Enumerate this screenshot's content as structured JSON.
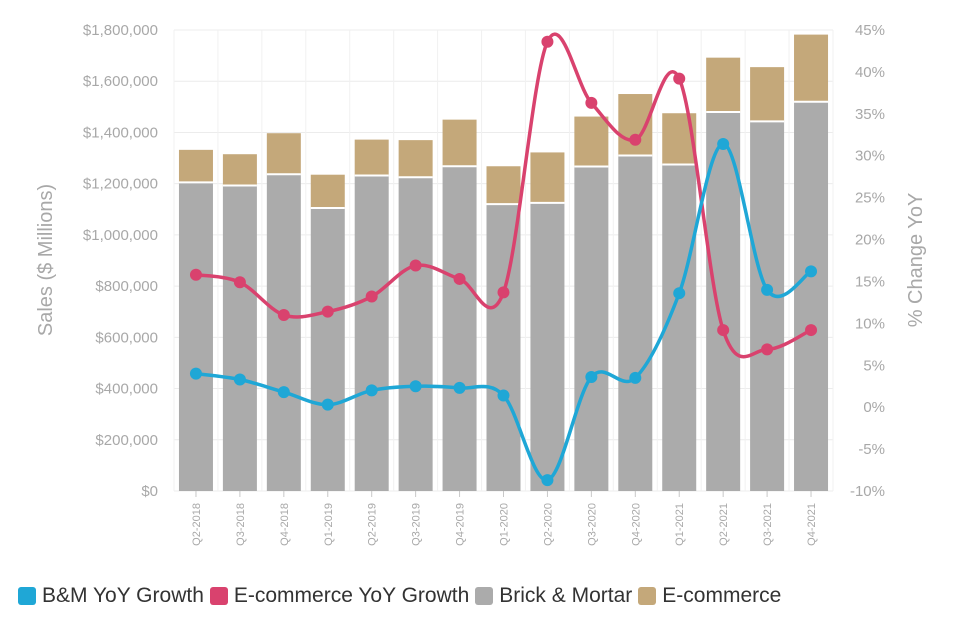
{
  "chart_data": {
    "type": "bar+line",
    "categories": [
      "Q2-2018",
      "Q3-2018",
      "Q4-2018",
      "Q1-2019",
      "Q2-2019",
      "Q3-2019",
      "Q4-2019",
      "Q1-2020",
      "Q2-2020",
      "Q3-2020",
      "Q4-2020",
      "Q1-2021",
      "Q2-2021",
      "Q3-2021",
      "Q4-2021"
    ],
    "ylabel": "Sales ($ Millions)",
    "y2label": "% Change YoY",
    "ylim": [
      0,
      1800000
    ],
    "y2lim": [
      -10,
      45
    ],
    "yticks": [
      "$0",
      "$200,000",
      "$400,000",
      "$600,000",
      "$800,000",
      "$1,000,000",
      "$1,200,000",
      "$1,400,000",
      "$1,600,000",
      "$1,800,000"
    ],
    "y2ticks": [
      "-10%",
      "-5%",
      "0%",
      "5%",
      "10%",
      "15%",
      "20%",
      "25%",
      "30%",
      "35%",
      "40%",
      "45%"
    ],
    "grid": true,
    "legend_position": "bottom",
    "bars": [
      {
        "name": "Brick & Mortar",
        "color": "#ababab",
        "values": [
          1205000,
          1193000,
          1237000,
          1105000,
          1232000,
          1225000,
          1268000,
          1120000,
          1125000,
          1267000,
          1310000,
          1275000,
          1480000,
          1443000,
          1520000
        ]
      },
      {
        "name": "E-commerce",
        "color": "#c4a87a",
        "values": [
          127000,
          122000,
          160000,
          130000,
          140000,
          145000,
          182000,
          148000,
          197000,
          195000,
          240000,
          200000,
          212000,
          212000,
          262000
        ]
      }
    ],
    "lines": [
      {
        "name": "B&M YoY Growth",
        "color": "#1fa7d6",
        "axis": "right",
        "values": [
          4,
          3.3,
          1.8,
          0.3,
          2,
          2.5,
          2.3,
          1.4,
          -8.7,
          3.6,
          3.5,
          13.6,
          31.4,
          14,
          16.2
        ]
      },
      {
        "name": "E-commerce YoY Growth",
        "color": "#d9426e",
        "axis": "right",
        "values": [
          15.8,
          14.9,
          11,
          11.4,
          13.2,
          16.9,
          15.3,
          13.7,
          43.6,
          36.3,
          31.9,
          39.2,
          9.2,
          6.9,
          9.2
        ]
      }
    ],
    "legend": [
      {
        "label": "B&M YoY Growth",
        "color": "#1fa7d6"
      },
      {
        "label": "E-commerce YoY Growth",
        "color": "#d9426e"
      },
      {
        "label": "Brick & Mortar",
        "color": "#ababab"
      },
      {
        "label": "E-commerce",
        "color": "#c4a87a"
      }
    ]
  }
}
